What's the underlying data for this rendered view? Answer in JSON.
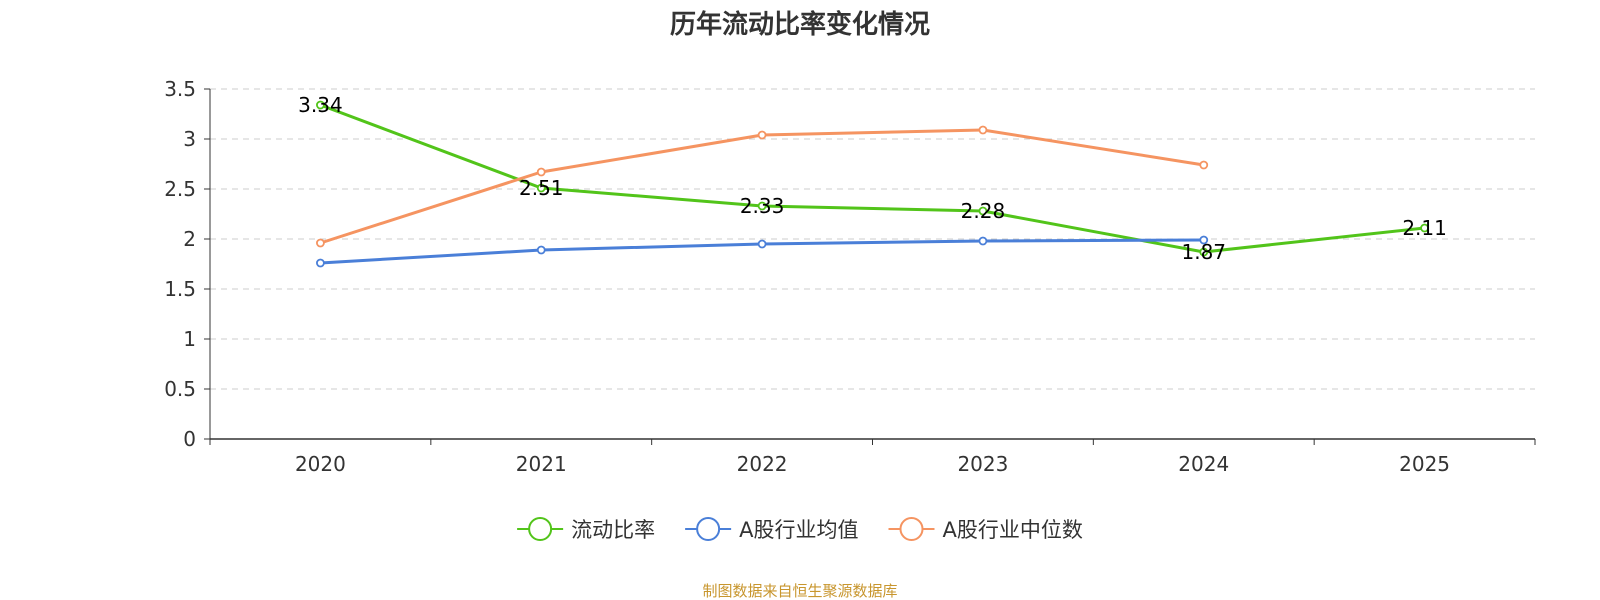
{
  "chart_data": {
    "type": "line",
    "title": "历年流动比率变化情况",
    "categories": [
      "2020",
      "2021",
      "2022",
      "2023",
      "2024",
      "2025"
    ],
    "ylim": [
      0,
      3.5
    ],
    "yticks": [
      "0",
      "0.5",
      "1",
      "1.5",
      "2",
      "2.5",
      "3",
      "3.5"
    ],
    "ytick_values": [
      0,
      0.5,
      1,
      1.5,
      2,
      2.5,
      3,
      3.5
    ],
    "grid": true,
    "legend_position": "bottom",
    "series": [
      {
        "name": "流动比率",
        "color": "#52c41a",
        "values": [
          3.34,
          2.51,
          2.33,
          2.28,
          1.87,
          2.11
        ],
        "labels": [
          "3.34",
          "2.51",
          "2.33",
          "2.28",
          "1.87",
          "2.11"
        ]
      },
      {
        "name": "A股行业均值",
        "color": "#4a7fd8",
        "values": [
          1.76,
          1.89,
          1.95,
          1.98,
          1.99,
          null
        ]
      },
      {
        "name": "A股行业中位数",
        "color": "#f59461",
        "values": [
          1.96,
          2.67,
          3.04,
          3.09,
          2.74,
          null
        ]
      }
    ],
    "source": "制图数据来自恒生聚源数据库"
  }
}
